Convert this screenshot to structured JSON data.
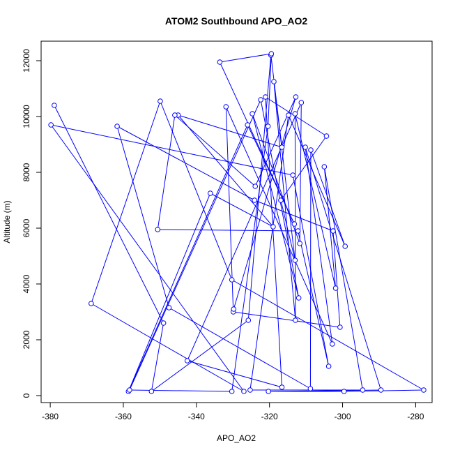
{
  "chart_data": {
    "type": "line",
    "title": "ATOM2 Southbound APO_AO2",
    "xlabel": "APO_AO2",
    "ylabel": "Altitude (m)",
    "xlim": [
      -382.5,
      -275.5
    ],
    "ylim": [
      -250,
      12700
    ],
    "xticks": [
      -380,
      -360,
      -340,
      -320,
      -300,
      -280
    ],
    "yticks": [
      0,
      2000,
      4000,
      6000,
      8000,
      10000,
      12000
    ],
    "grid": false,
    "line_color": "#0000FF",
    "marker": "open-circle",
    "series": [
      {
        "points": [
          [
            -378.9,
            10400
          ],
          [
            -349.0,
            2600
          ],
          [
            -352.3,
            150
          ],
          [
            -325.8,
            2700
          ],
          [
            -319.6,
            12200
          ],
          [
            -316.6,
            8900
          ],
          [
            -345.0,
            10050
          ],
          [
            -319.0,
            6050
          ],
          [
            -336.2,
            7250
          ],
          [
            -358.6,
            150
          ],
          [
            -326.0,
            9700
          ],
          [
            -313.2,
            6150
          ],
          [
            -333.6,
            11950
          ],
          [
            -319.5,
            12250
          ],
          [
            -320.4,
            9650
          ],
          [
            -330.3,
            150
          ],
          [
            -358.3,
            200
          ],
          [
            -322.4,
            10600
          ],
          [
            -312.0,
            3500
          ],
          [
            -324.7,
            10100
          ],
          [
            -311.7,
            5450
          ],
          [
            -311.3,
            10500
          ],
          [
            -342.5,
            1250
          ],
          [
            -316.6,
            300
          ],
          [
            -321.1,
            10700
          ],
          [
            -304.4,
            9300
          ],
          [
            -316.9,
            7000
          ],
          [
            -313.0,
            4850
          ],
          [
            -318.8,
            11250
          ],
          [
            -312.9,
            2700
          ],
          [
            -313.0,
            10100
          ],
          [
            -301.9,
            3850
          ],
          [
            -305.0,
            8200
          ],
          [
            -294.5,
            200
          ],
          [
            -325.3,
            200
          ],
          [
            -314.8,
            10050
          ],
          [
            -299.3,
            5350
          ],
          [
            -308.7,
            8800
          ],
          [
            -308.8,
            250
          ],
          [
            -347.5,
            3150
          ],
          [
            -361.7,
            9650
          ],
          [
            -324.1,
            7000
          ],
          [
            -302.6,
            5900
          ],
          [
            -300.7,
            2450
          ],
          [
            -329.9,
            3000
          ],
          [
            -331.9,
            10350
          ],
          [
            -302.8,
            1850
          ],
          [
            -310.2,
            8900
          ],
          [
            -289.5,
            200
          ],
          [
            -320.3,
            150
          ],
          [
            -299.6,
            150
          ],
          [
            -277.8,
            200
          ],
          [
            -330.3,
            4150
          ],
          [
            -349.9,
            10550
          ],
          [
            -368.8,
            3300
          ],
          [
            -327.0,
            150
          ],
          [
            -379.8,
            9700
          ],
          [
            -313.6,
            7900
          ],
          [
            -303.8,
            1050
          ],
          [
            -312.2,
            5900
          ],
          [
            -350.6,
            5950
          ],
          [
            -345.9,
            10050
          ],
          [
            -323.9,
            7500
          ],
          [
            -312.8,
            10700
          ],
          [
            -329.8,
            3100
          ]
        ]
      }
    ]
  }
}
